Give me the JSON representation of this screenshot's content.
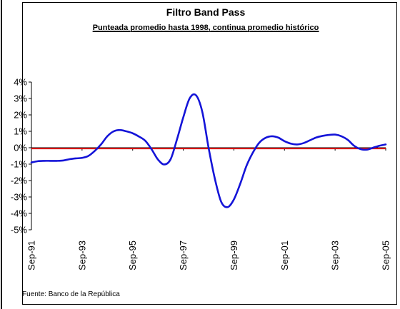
{
  "chart_data": {
    "type": "line",
    "title": "Filtro Band Pass",
    "subtitle": "Punteada promedio hasta 1998, continua promedio histórico",
    "source": "Fuente: Banco de la República",
    "ylim": [
      -5,
      4
    ],
    "y_ticks": [
      {
        "value": 4,
        "label": "4%"
      },
      {
        "value": 3,
        "label": "3%"
      },
      {
        "value": 2,
        "label": "2%"
      },
      {
        "value": 1,
        "label": "1%"
      },
      {
        "value": 0,
        "label": "0%"
      },
      {
        "value": -1,
        "label": "-1%"
      },
      {
        "value": -2,
        "label": "-2%"
      },
      {
        "value": -3,
        "label": "-3%"
      },
      {
        "value": -4,
        "label": "-4%"
      },
      {
        "value": -5,
        "label": "-5%"
      }
    ],
    "x_range": [
      0,
      56
    ],
    "x_ticks": [
      {
        "index": 0,
        "label": "Sep-91"
      },
      {
        "index": 8,
        "label": "Sep-93"
      },
      {
        "index": 16,
        "label": "Sep-95"
      },
      {
        "index": 24,
        "label": "Sep-97"
      },
      {
        "index": 32,
        "label": "Sep-99"
      },
      {
        "index": 40,
        "label": "Sep-01"
      },
      {
        "index": 48,
        "label": "Sep-03"
      },
      {
        "index": 56,
        "label": "Sep-05"
      }
    ],
    "series": [
      {
        "kind": "line",
        "color": "#1414d8",
        "values": [
          {
            "x": 0,
            "y": -0.9
          },
          {
            "x": 1,
            "y": -0.82
          },
          {
            "x": 2,
            "y": -0.8
          },
          {
            "x": 3,
            "y": -0.8
          },
          {
            "x": 4,
            "y": -0.8
          },
          {
            "x": 5,
            "y": -0.78
          },
          {
            "x": 6,
            "y": -0.7
          },
          {
            "x": 7,
            "y": -0.65
          },
          {
            "x": 8,
            "y": -0.62
          },
          {
            "x": 9,
            "y": -0.5
          },
          {
            "x": 10,
            "y": -0.2
          },
          {
            "x": 11,
            "y": 0.2
          },
          {
            "x": 12,
            "y": 0.7
          },
          {
            "x": 13,
            "y": 1.0
          },
          {
            "x": 14,
            "y": 1.08
          },
          {
            "x": 15,
            "y": 1.0
          },
          {
            "x": 16,
            "y": 0.88
          },
          {
            "x": 17,
            "y": 0.68
          },
          {
            "x": 18,
            "y": 0.42
          },
          {
            "x": 19,
            "y": -0.1
          },
          {
            "x": 20,
            "y": -0.72
          },
          {
            "x": 21,
            "y": -1.02
          },
          {
            "x": 22,
            "y": -0.7
          },
          {
            "x": 23,
            "y": 0.5
          },
          {
            "x": 24,
            "y": 1.85
          },
          {
            "x": 25,
            "y": 3.0
          },
          {
            "x": 26,
            "y": 3.2
          },
          {
            "x": 27,
            "y": 2.2
          },
          {
            "x": 28,
            "y": 0.0
          },
          {
            "x": 29,
            "y": -1.9
          },
          {
            "x": 30,
            "y": -3.3
          },
          {
            "x": 31,
            "y": -3.62
          },
          {
            "x": 32,
            "y": -3.15
          },
          {
            "x": 33,
            "y": -2.2
          },
          {
            "x": 34,
            "y": -1.1
          },
          {
            "x": 35,
            "y": -0.3
          },
          {
            "x": 36,
            "y": 0.3
          },
          {
            "x": 37,
            "y": 0.6
          },
          {
            "x": 38,
            "y": 0.7
          },
          {
            "x": 39,
            "y": 0.62
          },
          {
            "x": 40,
            "y": 0.4
          },
          {
            "x": 41,
            "y": 0.25
          },
          {
            "x": 42,
            "y": 0.2
          },
          {
            "x": 43,
            "y": 0.28
          },
          {
            "x": 44,
            "y": 0.45
          },
          {
            "x": 45,
            "y": 0.62
          },
          {
            "x": 46,
            "y": 0.72
          },
          {
            "x": 47,
            "y": 0.78
          },
          {
            "x": 48,
            "y": 0.8
          },
          {
            "x": 49,
            "y": 0.7
          },
          {
            "x": 50,
            "y": 0.48
          },
          {
            "x": 51,
            "y": 0.12
          },
          {
            "x": 52,
            "y": -0.08
          },
          {
            "x": 53,
            "y": -0.12
          },
          {
            "x": 54,
            "y": 0.0
          },
          {
            "x": 55,
            "y": 0.12
          },
          {
            "x": 56,
            "y": 0.2
          }
        ]
      },
      {
        "kind": "reference-line",
        "style": "dotted",
        "color": "#000000",
        "value": -0.05
      },
      {
        "kind": "reference-line",
        "style": "solid",
        "color": "#e01010",
        "value": -0.05
      }
    ]
  }
}
